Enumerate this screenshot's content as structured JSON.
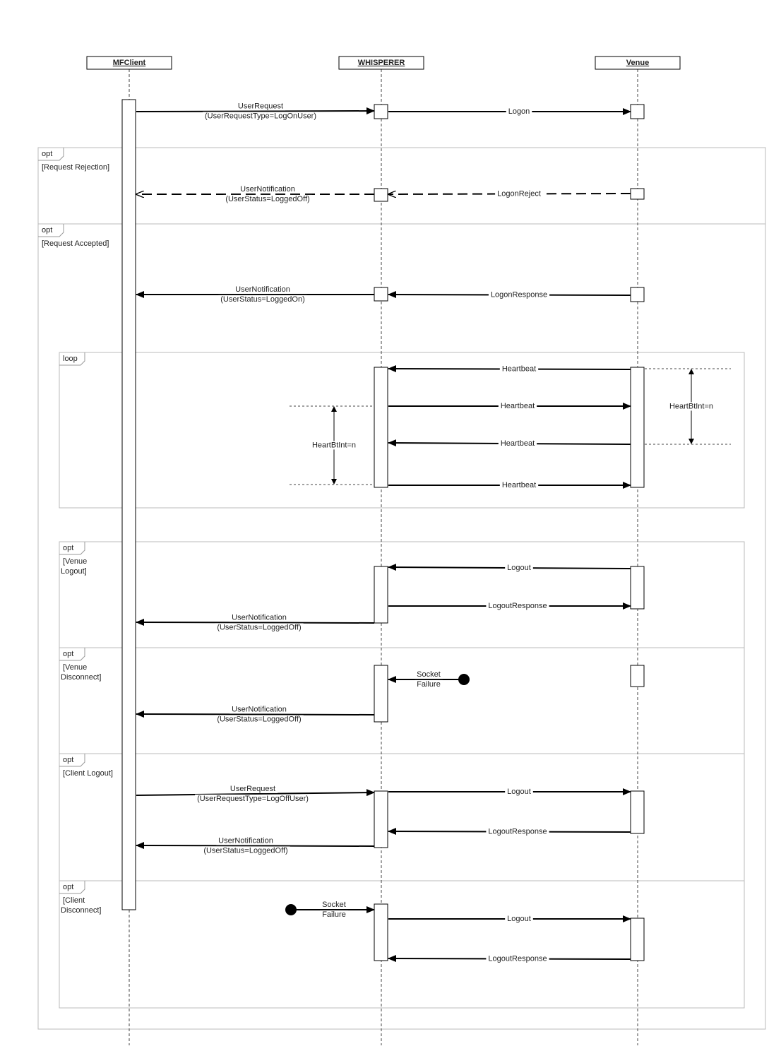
{
  "participants": [
    "MFClient",
    "WHISPERER",
    "Venue"
  ],
  "fragments": [
    {
      "kind": "opt",
      "guard": [
        "[Request Rejection]"
      ]
    },
    {
      "kind": "opt",
      "guard": [
        "[Request Accepted]"
      ]
    },
    {
      "kind": "loop"
    },
    {
      "kind": "opt",
      "guard": [
        "[Venue",
        "Logout]"
      ]
    },
    {
      "kind": "opt",
      "guard": [
        "[Venue",
        "Disconnect]"
      ]
    },
    {
      "kind": "opt",
      "guard": [
        "[Client Logout]"
      ]
    },
    {
      "kind": "opt",
      "guard": [
        "[Client",
        "Disconnect]"
      ]
    }
  ],
  "messages": [
    {
      "label": [
        "UserRequest",
        "(UserRequestType=LogOnUser)"
      ]
    },
    {
      "label": [
        "Logon"
      ]
    },
    {
      "label": [
        "LogonReject"
      ]
    },
    {
      "label": [
        "UserNotification",
        "(UserStatus=LoggedOff)"
      ]
    },
    {
      "label": [
        "LogonResponse"
      ]
    },
    {
      "label": [
        "UserNotification",
        "(UserStatus=LoggedOn)"
      ]
    },
    {
      "label": [
        "Heartbeat"
      ]
    },
    {
      "label": [
        "Heartbeat"
      ]
    },
    {
      "label": [
        "Heartbeat"
      ]
    },
    {
      "label": [
        "Heartbeat"
      ]
    },
    {
      "label": [
        "Logout"
      ]
    },
    {
      "label": [
        "LogoutResponse"
      ]
    },
    {
      "label": [
        "UserNotification",
        "(UserStatus=LoggedOff)"
      ]
    },
    {
      "label": [
        "Socket",
        "Failure"
      ]
    },
    {
      "label": [
        "UserNotification",
        "(UserStatus=LoggedOff)"
      ]
    },
    {
      "label": [
        "UserRequest",
        "(UserRequestType=LogOffUser)"
      ]
    },
    {
      "label": [
        "Logout"
      ]
    },
    {
      "label": [
        "LogoutResponse"
      ]
    },
    {
      "label": [
        "UserNotification",
        "(UserStatus=LoggedOff)"
      ]
    },
    {
      "label": [
        "Socket",
        "Failure"
      ]
    },
    {
      "label": [
        "Logout"
      ]
    },
    {
      "label": [
        "LogoutResponse"
      ]
    }
  ],
  "notes": [
    "HeartBtInt=n",
    "HeartBtInt=n"
  ]
}
